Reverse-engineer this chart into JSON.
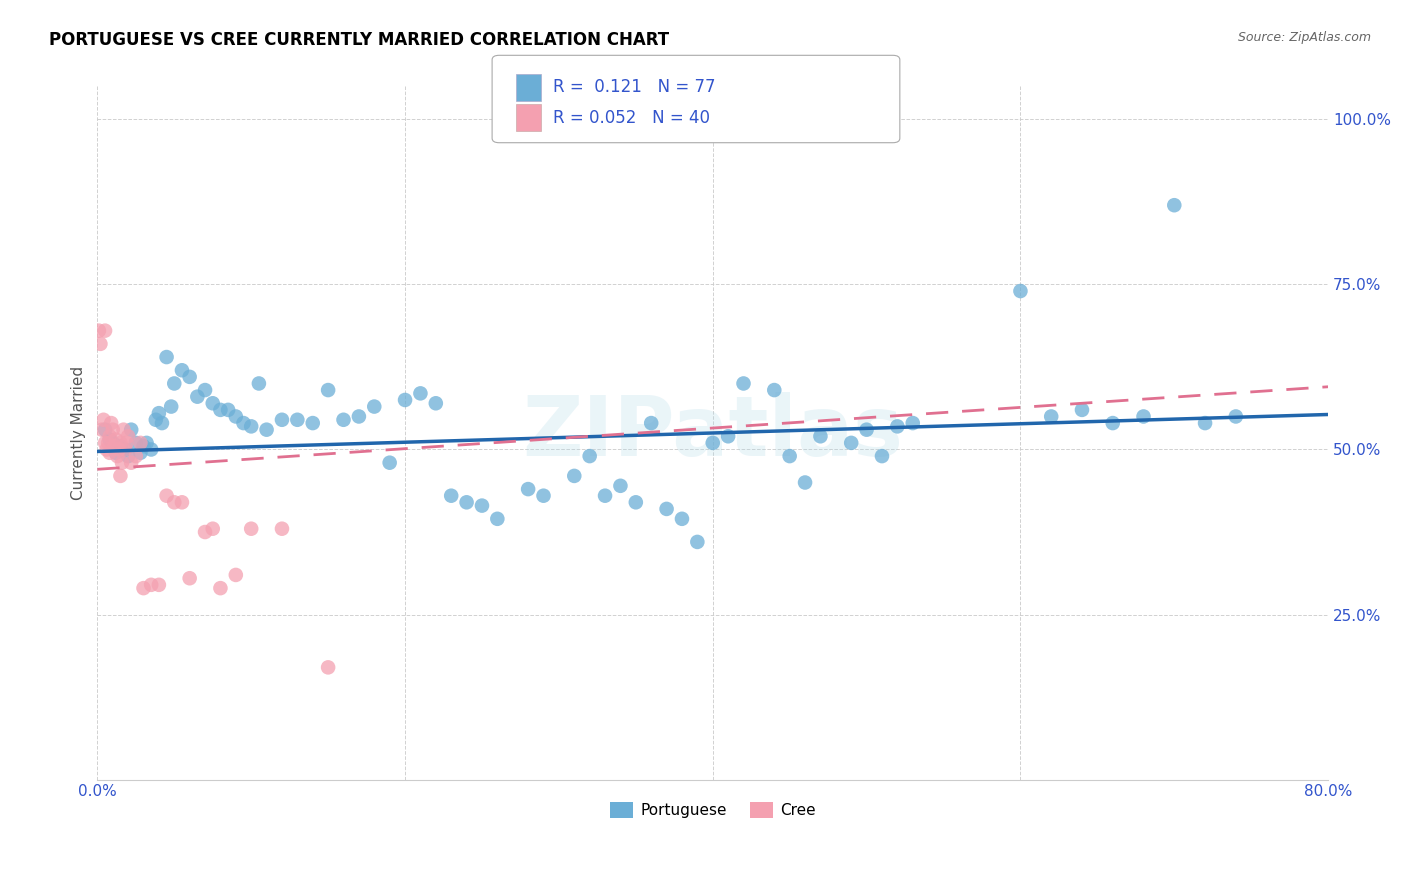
{
  "title": "PORTUGUESE VS CREE CURRENTLY MARRIED CORRELATION CHART",
  "source": "Source: ZipAtlas.com",
  "ylabel": "Currently Married",
  "xlim": [
    0.0,
    0.8
  ],
  "ylim": [
    0.0,
    1.05
  ],
  "xticks": [
    0.0,
    0.2,
    0.4,
    0.6,
    0.8
  ],
  "xticklabels": [
    "0.0%",
    "",
    "",
    "",
    "80.0%"
  ],
  "yticks": [
    0.25,
    0.5,
    0.75,
    1.0
  ],
  "yticklabels": [
    "25.0%",
    "50.0%",
    "75.0%",
    "100.0%"
  ],
  "portuguese_R": 0.121,
  "portuguese_N": 77,
  "cree_R": 0.052,
  "cree_N": 40,
  "portuguese_color": "#6baed6",
  "cree_color": "#f4a0b0",
  "portuguese_line_color": "#2166ac",
  "cree_line_color": "#e07090",
  "watermark": "ZIPatlas",
  "portuguese_x": [
    0.005,
    0.008,
    0.01,
    0.012,
    0.015,
    0.018,
    0.02,
    0.022,
    0.025,
    0.028,
    0.03,
    0.032,
    0.035,
    0.038,
    0.04,
    0.042,
    0.045,
    0.048,
    0.05,
    0.055,
    0.06,
    0.065,
    0.07,
    0.075,
    0.08,
    0.085,
    0.09,
    0.095,
    0.1,
    0.105,
    0.11,
    0.12,
    0.13,
    0.14,
    0.15,
    0.16,
    0.17,
    0.18,
    0.19,
    0.2,
    0.21,
    0.22,
    0.23,
    0.24,
    0.25,
    0.26,
    0.28,
    0.29,
    0.31,
    0.32,
    0.33,
    0.34,
    0.35,
    0.36,
    0.37,
    0.38,
    0.39,
    0.4,
    0.41,
    0.42,
    0.44,
    0.45,
    0.46,
    0.47,
    0.49,
    0.5,
    0.51,
    0.52,
    0.53,
    0.6,
    0.62,
    0.64,
    0.66,
    0.68,
    0.7,
    0.72,
    0.74
  ],
  "portuguese_y": [
    0.53,
    0.515,
    0.51,
    0.495,
    0.505,
    0.5,
    0.49,
    0.53,
    0.51,
    0.495,
    0.505,
    0.51,
    0.5,
    0.545,
    0.555,
    0.54,
    0.64,
    0.565,
    0.6,
    0.62,
    0.61,
    0.58,
    0.59,
    0.57,
    0.56,
    0.56,
    0.55,
    0.54,
    0.535,
    0.6,
    0.53,
    0.545,
    0.545,
    0.54,
    0.59,
    0.545,
    0.55,
    0.565,
    0.48,
    0.575,
    0.585,
    0.57,
    0.43,
    0.42,
    0.415,
    0.395,
    0.44,
    0.43,
    0.46,
    0.49,
    0.43,
    0.445,
    0.42,
    0.54,
    0.41,
    0.395,
    0.36,
    0.51,
    0.52,
    0.6,
    0.59,
    0.49,
    0.45,
    0.52,
    0.51,
    0.53,
    0.49,
    0.535,
    0.54,
    0.74,
    0.55,
    0.56,
    0.54,
    0.55,
    0.87,
    0.54,
    0.55
  ],
  "cree_x": [
    0.001,
    0.002,
    0.003,
    0.004,
    0.005,
    0.005,
    0.006,
    0.007,
    0.008,
    0.008,
    0.009,
    0.01,
    0.011,
    0.012,
    0.013,
    0.014,
    0.015,
    0.015,
    0.016,
    0.017,
    0.018,
    0.019,
    0.02,
    0.022,
    0.025,
    0.028,
    0.03,
    0.035,
    0.04,
    0.045,
    0.05,
    0.055,
    0.06,
    0.07,
    0.075,
    0.08,
    0.09,
    0.1,
    0.12,
    0.15
  ],
  "cree_y": [
    0.68,
    0.66,
    0.53,
    0.545,
    0.51,
    0.68,
    0.5,
    0.51,
    0.52,
    0.495,
    0.54,
    0.53,
    0.505,
    0.515,
    0.49,
    0.5,
    0.46,
    0.51,
    0.48,
    0.53,
    0.5,
    0.51,
    0.52,
    0.48,
    0.49,
    0.51,
    0.29,
    0.295,
    0.295,
    0.43,
    0.42,
    0.42,
    0.305,
    0.375,
    0.38,
    0.29,
    0.31,
    0.38,
    0.38,
    0.17
  ]
}
